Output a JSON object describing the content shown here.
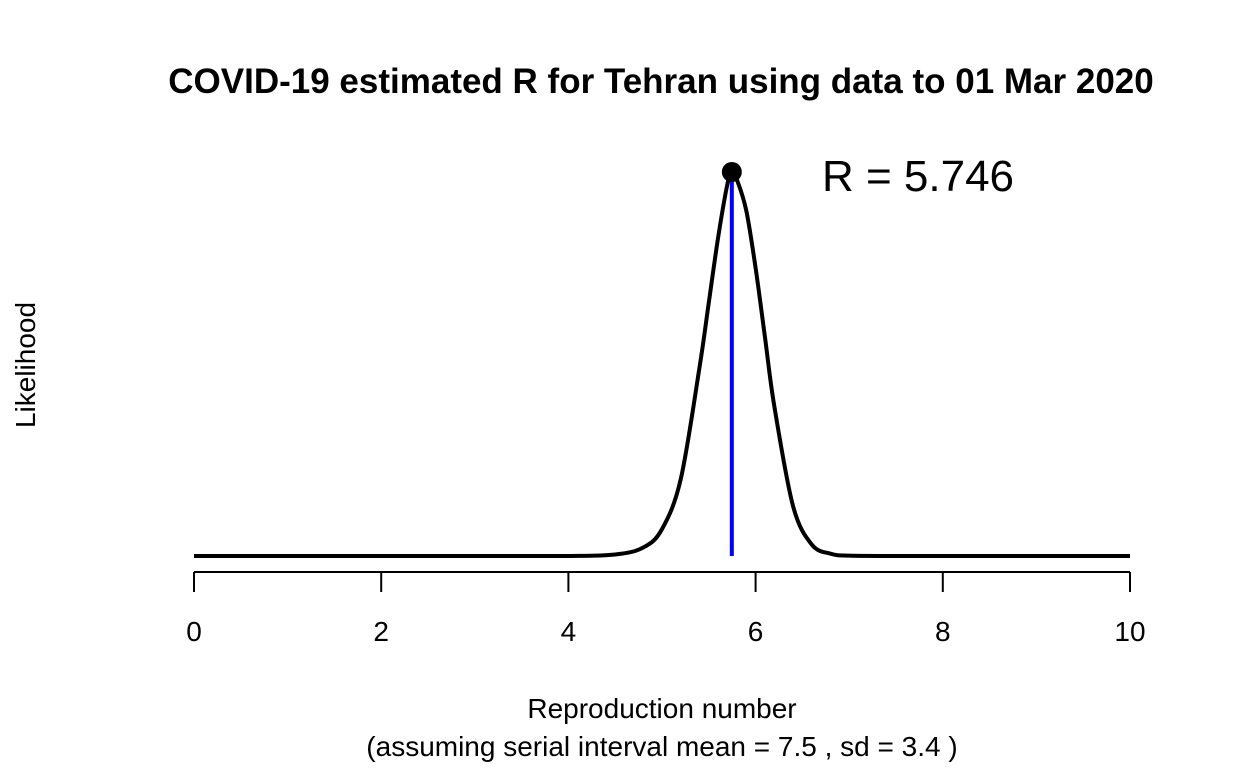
{
  "chart_data": {
    "type": "line",
    "title": "COVID-19 estimated R for Tehran using data to 01 Mar 2020",
    "xlabel": "Reproduction number",
    "xlabel_sub": "(assuming serial interval mean = 7.5 , sd = 3.4 )",
    "ylabel": "Likelihood",
    "xlim": [
      0,
      10
    ],
    "ylim": [
      0,
      1
    ],
    "x_ticks": [
      0,
      2,
      4,
      6,
      8,
      10
    ],
    "y_ticks": [],
    "grid": false,
    "legend": "none",
    "series": [
      {
        "color": "#000000",
        "x": [
          0,
          1,
          2,
          3,
          4,
          4.5,
          4.8,
          5.0,
          5.2,
          5.4,
          5.5,
          5.6,
          5.7,
          5.746,
          5.8,
          5.9,
          6.0,
          6.1,
          6.2,
          6.4,
          6.6,
          6.8,
          7.0,
          7.5,
          8,
          9,
          10
        ],
        "y": [
          0,
          0,
          0,
          0,
          0,
          0.004,
          0.022,
          0.07,
          0.2,
          0.49,
          0.66,
          0.83,
          0.97,
          1.0,
          0.98,
          0.9,
          0.75,
          0.57,
          0.39,
          0.13,
          0.03,
          0.006,
          0.001,
          0,
          0,
          0,
          0
        ]
      }
    ],
    "peak": {
      "x": 5.746,
      "y": 1.0,
      "marker_color": "#000000",
      "line_color": "#0000ff"
    },
    "annotation": {
      "text": "R = 5.746"
    }
  }
}
